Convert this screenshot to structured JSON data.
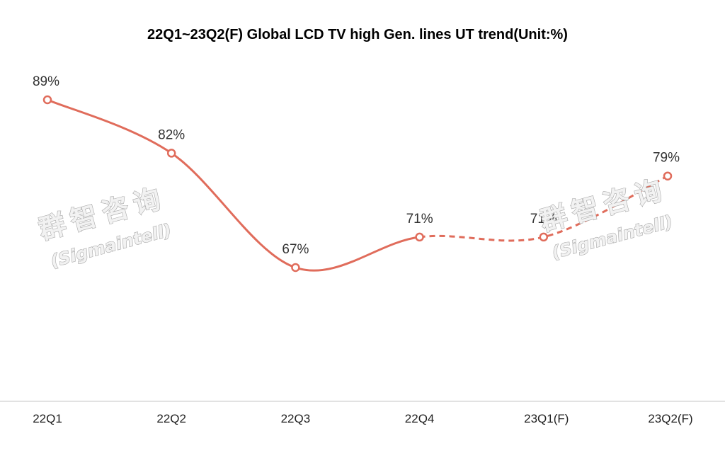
{
  "chart_data": {
    "type": "line",
    "title": "22Q1~23Q2(F) Global LCD TV high Gen. lines UT trend(Unit:%)",
    "categories": [
      "22Q1",
      "22Q2",
      "22Q3",
      "22Q4",
      "23Q1(F)",
      "23Q2(F)"
    ],
    "values": [
      89,
      82,
      67,
      71,
      71,
      79
    ],
    "data_labels": [
      "89%",
      "82%",
      "67%",
      "71%",
      "71%",
      "79%"
    ],
    "forecast_from_index": 3,
    "ylim": [
      40,
      95
    ],
    "grid": false,
    "legend": "none",
    "line_color": "#e06c5b",
    "axis_color": "#d9d9d9"
  },
  "watermark": {
    "cn": "群智咨询",
    "en": "(Sigmaintell)"
  }
}
